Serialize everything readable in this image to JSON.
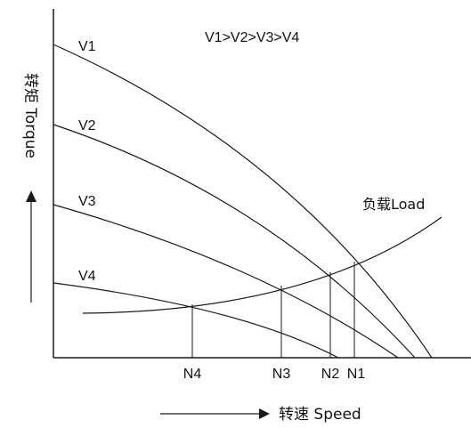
{
  "diagram": {
    "relation_note": "V1>V2>V3>V4",
    "y_axis_label": "转矩 Torque",
    "x_axis_label": "转速 Speed",
    "load_label": "负载Load",
    "curves": [
      {
        "label": "V1"
      },
      {
        "label": "V2"
      },
      {
        "label": "V3"
      },
      {
        "label": "V4"
      }
    ],
    "speed_marks": [
      "N4",
      "N3",
      "N2",
      "N1"
    ],
    "line_color": "#1a1a1a"
  }
}
